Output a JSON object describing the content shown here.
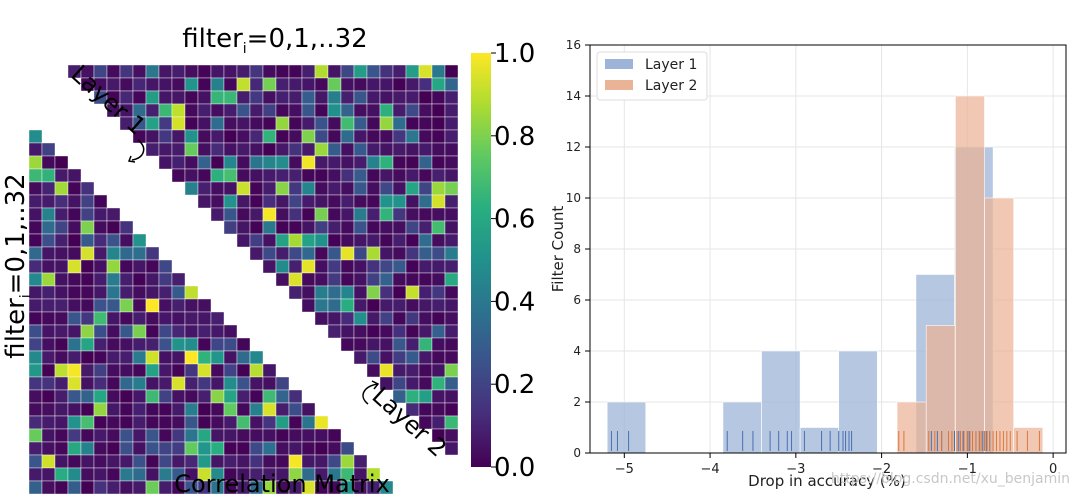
{
  "chart_data": [
    {
      "type": "heatmap",
      "title_prefix": "filter",
      "title_subscript": "i",
      "title_suffix": "=0,1,..32",
      "xlabel": "Correlation Matrix",
      "ylabel_prefix": "filter",
      "ylabel_subscript": "i",
      "ylabel_suffix": "=0,1,..32",
      "annotation_upper": "Layer 1",
      "annotation_lower": "Layer 2",
      "grid_size": 33,
      "colormap": "viridis",
      "colorbar": {
        "range": [
          0.0,
          1.0
        ],
        "tick_labels": [
          "0.0",
          "0.2",
          "0.4",
          "0.6",
          "0.8",
          "1.0"
        ],
        "tick_values": [
          0.0,
          0.2,
          0.4,
          0.6,
          0.8,
          1.0
        ]
      },
      "layer1_region": "upper-triangle",
      "layer2_region": "lower-triangle",
      "diagonal_band": "empty"
    },
    {
      "type": "histogram",
      "xlabel": "Drop in accuracy (%)",
      "ylabel": "Filter Count",
      "xlim": [
        -5.4,
        0.15
      ],
      "ylim": [
        0,
        16
      ],
      "x_ticks": [
        -5,
        -4,
        -3,
        -2,
        -1,
        0
      ],
      "x_tick_labels": [
        "−5",
        "−4",
        "−3",
        "−2",
        "−1",
        "0"
      ],
      "y_ticks": [
        0,
        2,
        4,
        6,
        8,
        10,
        12,
        14,
        16
      ],
      "y_tick_labels": [
        "0",
        "2",
        "4",
        "6",
        "8",
        "10",
        "12",
        "14",
        "16"
      ],
      "grid": true,
      "legend": "top-left",
      "series": [
        {
          "name": "Layer 1",
          "color": "#9db4d8",
          "rug_color": "#4a6fb0",
          "bins": [
            {
              "x0": -5.2,
              "x1": -4.75,
              "count": 2
            },
            {
              "x0": -3.85,
              "x1": -3.4,
              "count": 2
            },
            {
              "x0": -3.4,
              "x1": -2.95,
              "count": 4
            },
            {
              "x0": -2.95,
              "x1": -2.5,
              "count": 1
            },
            {
              "x0": -2.5,
              "x1": -2.05,
              "count": 4
            },
            {
              "x0": -1.6,
              "x1": -1.15,
              "count": 7
            },
            {
              "x0": -1.15,
              "x1": -0.7,
              "count": 12
            }
          ],
          "rug": [
            -5.15,
            -5.08,
            -4.95,
            -3.8,
            -3.62,
            -3.5,
            -3.3,
            -3.2,
            -3.1,
            -3.05,
            -2.9,
            -2.7,
            -2.6,
            -2.5,
            -2.45,
            -2.42,
            -2.38,
            -2.35,
            -1.42,
            -1.35,
            -1.3,
            -1.22,
            -1.15,
            -1.1,
            -1.05,
            -1.0,
            -0.98,
            -0.94,
            -0.9,
            -0.86,
            -0.82,
            -0.78,
            -0.74
          ]
        },
        {
          "name": "Layer 2",
          "color": "#eab396",
          "rug_color": "#d9783d",
          "bins": [
            {
              "x0": -1.82,
              "x1": -1.48,
              "count": 2
            },
            {
              "x0": -1.48,
              "x1": -1.14,
              "count": 5
            },
            {
              "x0": -1.14,
              "x1": -0.8,
              "count": 14
            },
            {
              "x0": -0.8,
              "x1": -0.46,
              "count": 10
            },
            {
              "x0": -0.46,
              "x1": -0.12,
              "count": 1
            }
          ],
          "rug": [
            -1.8,
            -1.74,
            -1.45,
            -1.38,
            -1.3,
            -1.22,
            -1.18,
            -1.12,
            -1.08,
            -1.04,
            -1.0,
            -0.97,
            -0.94,
            -0.9,
            -0.86,
            -0.84,
            -0.8,
            -0.77,
            -0.74,
            -0.7,
            -0.66,
            -0.62,
            -0.58,
            -0.54,
            -0.5,
            -0.42,
            -0.3,
            -0.16
          ]
        }
      ]
    }
  ],
  "watermark": "https://blog.csdn.net/xu_benjamin"
}
